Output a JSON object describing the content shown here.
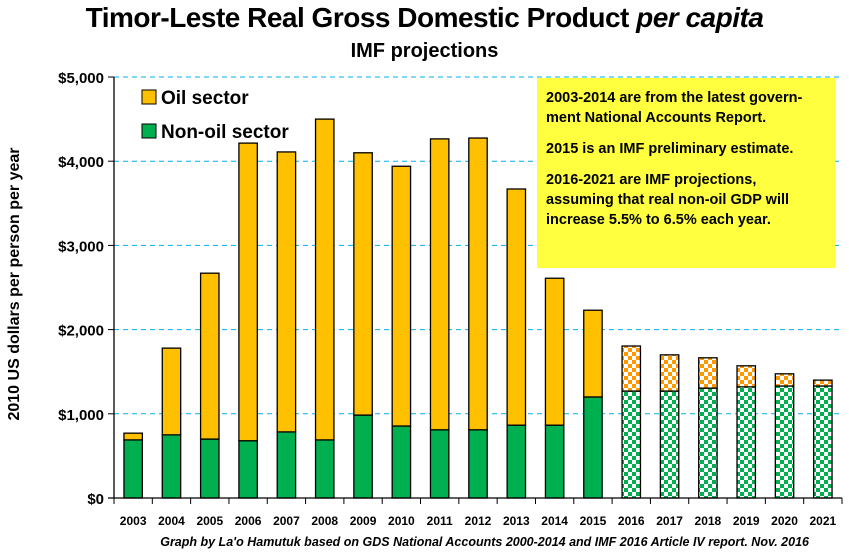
{
  "chart_data": {
    "type": "bar",
    "stacked": true,
    "title": "Timor-Leste Real Gross Domestic Product",
    "title_italic": "per capita",
    "subtitle": "IMF projections",
    "xlabel": "",
    "ylabel": "2010 US dollars per person per year",
    "ylim": [
      0,
      5000
    ],
    "yticks": [
      0,
      1000,
      2000,
      3000,
      4000,
      5000
    ],
    "ytick_labels": [
      "$0",
      "$1,000",
      "$2,000",
      "$3,000",
      "$4,000",
      "$5,000"
    ],
    "grid": true,
    "legend_position": "top-left",
    "categories": [
      "2003",
      "2004",
      "2005",
      "2006",
      "2007",
      "2008",
      "2009",
      "2010",
      "2011",
      "2012",
      "2013",
      "2014",
      "2015",
      "2016",
      "2017",
      "2018",
      "2019",
      "2020",
      "2021"
    ],
    "projected_from_index": 13,
    "series": [
      {
        "name": "Non-oil sector",
        "color": "#00b050",
        "values": [
          690,
          750,
          700,
          680,
          785,
          690,
          985,
          855,
          810,
          810,
          865,
          865,
          1200,
          1270,
          1270,
          1305,
          1320,
          1330,
          1330
        ]
      },
      {
        "name": "Oil sector",
        "color": "#ffc000",
        "projected_color": "#ff9900",
        "values": [
          80,
          1030,
          1970,
          3535,
          3325,
          3810,
          3115,
          3085,
          3455,
          3465,
          2805,
          1745,
          1030,
          535,
          430,
          360,
          250,
          145,
          70
        ]
      }
    ],
    "legend": [
      "Oil sector",
      "Non-oil sector"
    ],
    "annotation": [
      "2003-2014 are from the latest govern-ment National Accounts Report.",
      "2015 is an IMF preliminary estimate.",
      "2016-2021 are IMF projections, assuming that real non-oil GDP will increase 5.5% to 6.5% each year."
    ],
    "credit": "Graph by La'o Hamutuk based on GDS National Accounts 2000-2014 and IMF 2016 Article IV report.  Nov. 2016"
  },
  "note": {
    "p1_line1": "2003-2014 are from the latest govern-",
    "p1_line2": "ment National Accounts Report.",
    "p2": "2015 is an IMF preliminary estimate.",
    "p3_line1": "2016-2021 are IMF projections,",
    "p3_line2": "assuming that real non-oil GDP will",
    "p3_line3": "increase 5.5% to 6.5% each year."
  }
}
